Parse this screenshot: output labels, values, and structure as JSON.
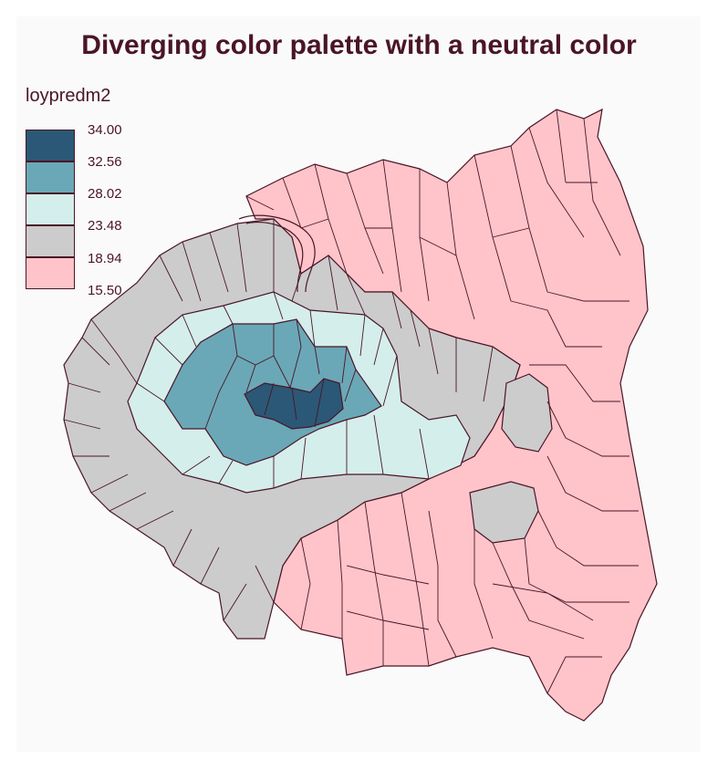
{
  "map": {
    "title": "Diverging color palette with a neutral color"
  },
  "legend": {
    "title": "loypredm2",
    "breaks": [
      "34.00",
      "32.56",
      "28.02",
      "23.48",
      "18.94",
      "15.50"
    ],
    "classes": [
      {
        "color": "#2b5876",
        "from": "32.56",
        "to": "34.00"
      },
      {
        "color": "#6aa8b7",
        "from": "28.02",
        "to": "32.56"
      },
      {
        "color": "#d4eeeb",
        "from": "23.48",
        "to": "28.02"
      },
      {
        "color": "#cccccc",
        "from": "18.94",
        "to": "23.48"
      },
      {
        "color": "#ffc4c9",
        "from": "15.50",
        "to": "18.94"
      }
    ]
  },
  "colors": {
    "border": "#4a1527",
    "background": "#fafafa",
    "title": "#4a1527"
  }
}
